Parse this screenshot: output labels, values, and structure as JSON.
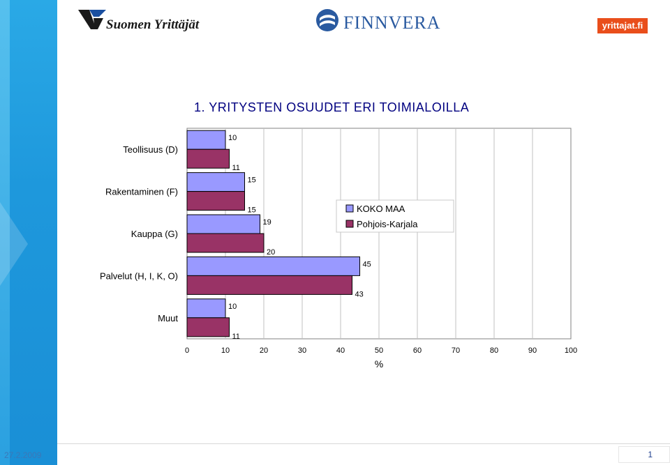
{
  "logos": {
    "left_name": "Suomen Yrittäjät",
    "center_name": "FINNVERA",
    "right_name": "yrittajat.fi"
  },
  "footer": {
    "date": "27.2.2009",
    "page_number": "1"
  },
  "colors": {
    "series_1": "#9999ff",
    "series_2": "#993366",
    "title": "#000080"
  },
  "chart_data": {
    "type": "bar",
    "orientation": "horizontal",
    "title": "1. YRITYSTEN OSUUDET ERI TOIMIALOILLA",
    "xlabel": "%",
    "ylabel": "",
    "xlim": [
      0,
      100
    ],
    "x_ticks": [
      0,
      10,
      20,
      30,
      40,
      50,
      60,
      70,
      80,
      90,
      100
    ],
    "grid": "vertical",
    "legend_position": "right",
    "categories": [
      "Teollisuus (D)",
      "Rakentaminen (F)",
      "Kauppa (G)",
      "Palvelut (H, I, K, O)",
      "Muut"
    ],
    "series": [
      {
        "name": "KOKO MAA",
        "values": [
          10,
          15,
          19,
          45,
          10
        ]
      },
      {
        "name": "Pohjois-Karjala",
        "values": [
          11,
          15,
          20,
          43,
          11
        ]
      }
    ]
  }
}
